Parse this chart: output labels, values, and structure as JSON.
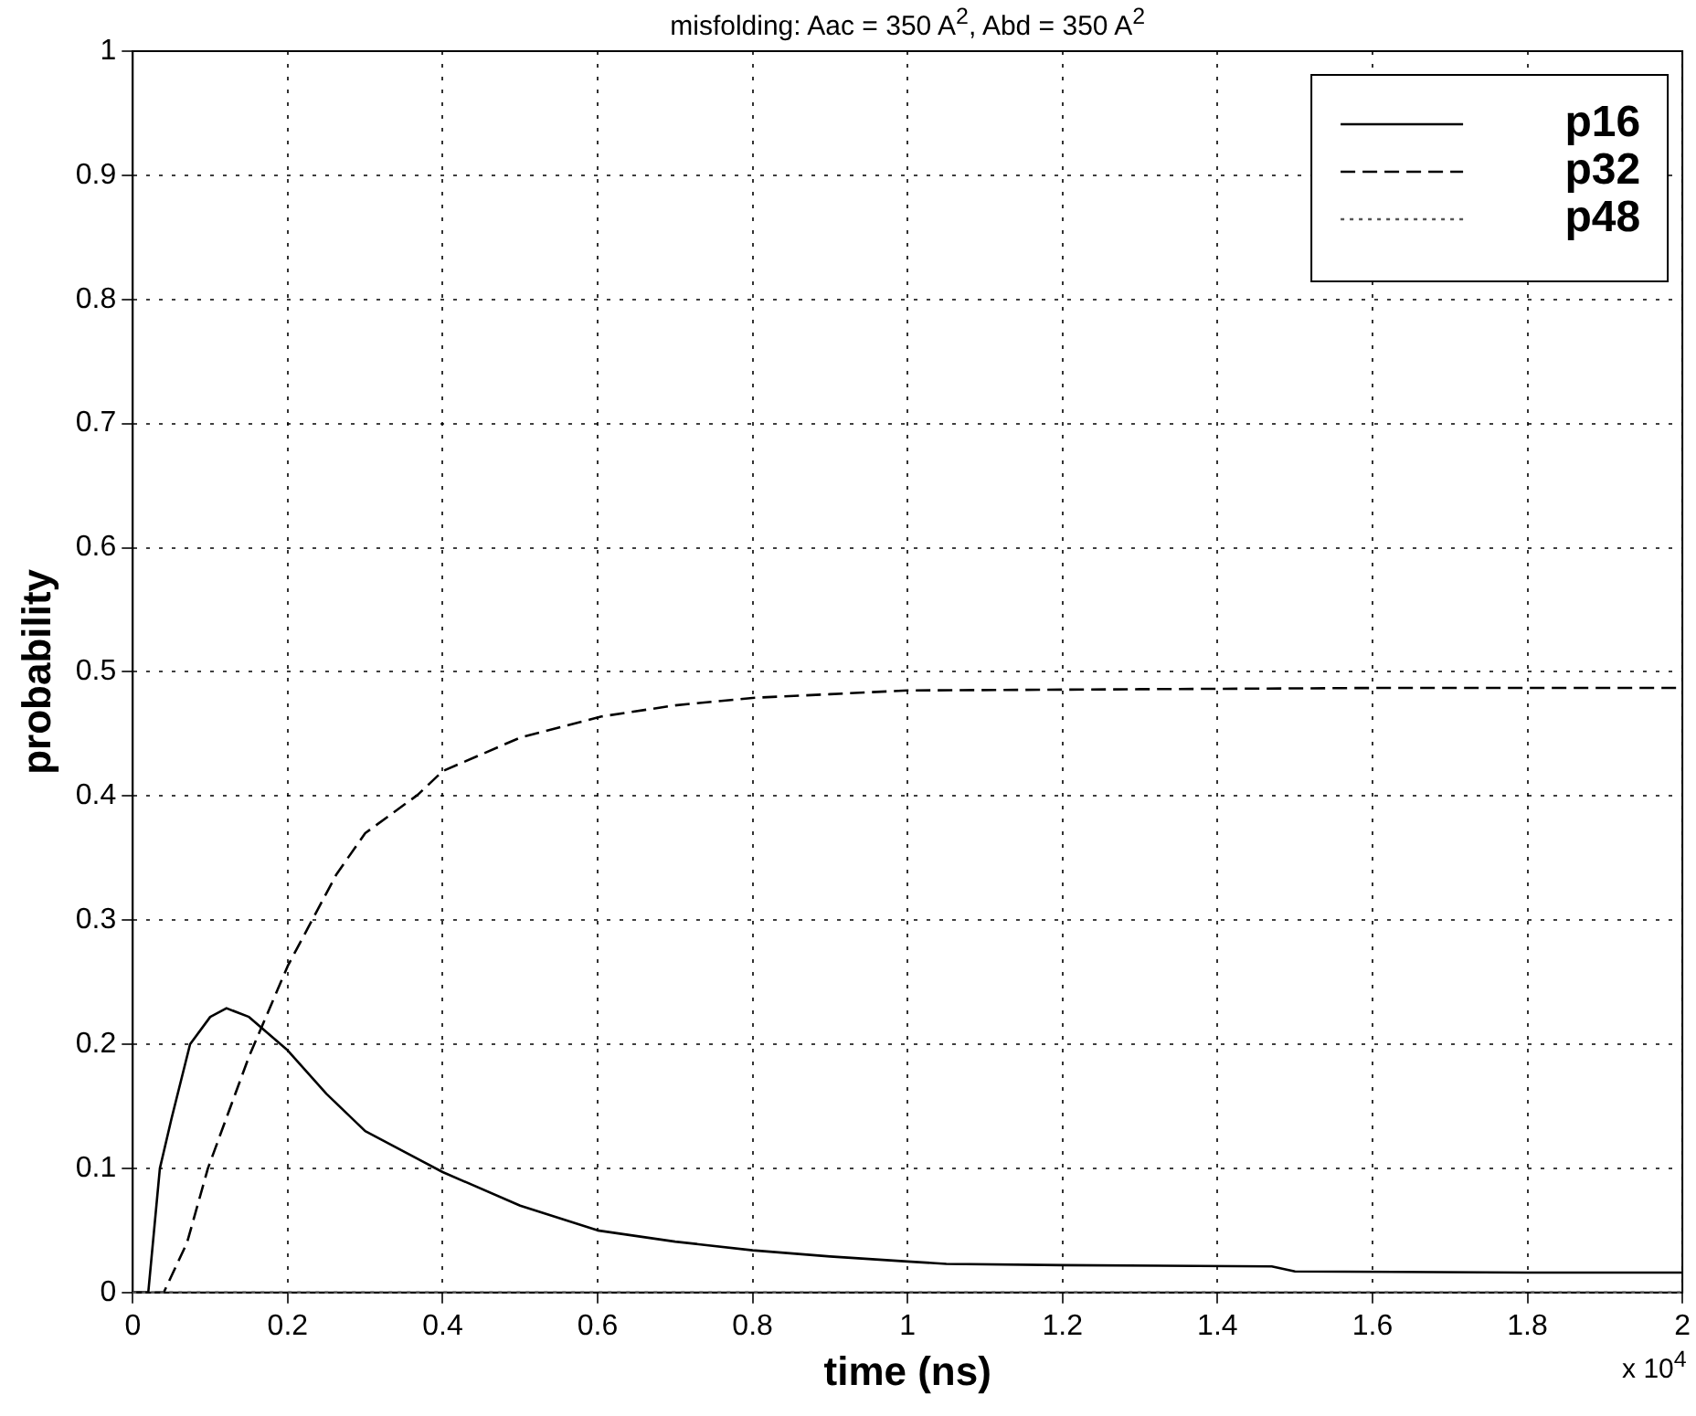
{
  "chart_data": {
    "type": "line",
    "title": "misfolding: Aac = 350  A$^{2}$, Abd = 350 A$^{2}$",
    "xlabel": "time (ns)",
    "ylabel": "probability",
    "annotations": [
      "x 10$^{4}$"
    ],
    "series": [
      {
        "name": "p16",
        "color": "#000000",
        "line_style": "solid",
        "x": [
          0,
          0.02,
          0.035,
          0.05,
          0.074,
          0.1,
          0.121,
          0.15,
          0.2,
          0.25,
          0.3,
          0.4,
          0.5,
          0.6,
          0.7,
          0.8,
          0.9,
          1.0,
          1.05,
          1.2,
          1.47,
          1.5,
          1.8,
          2.0
        ],
        "values": [
          0,
          0,
          0.1,
          0.14,
          0.2,
          0.222,
          0.229,
          0.222,
          0.195,
          0.16,
          0.13,
          0.097,
          0.07,
          0.05,
          0.041,
          0.034,
          0.029,
          0.025,
          0.023,
          0.022,
          0.021,
          0.017,
          0.016,
          0.016
        ]
      },
      {
        "name": "p32",
        "color": "#000000",
        "line_style": "dashed",
        "x": [
          0,
          0.04,
          0.07,
          0.097,
          0.15,
          0.2,
          0.263,
          0.3,
          0.368,
          0.4,
          0.5,
          0.605,
          0.7,
          0.8,
          0.9,
          1.0,
          1.3,
          1.6,
          2.0
        ],
        "values": [
          0,
          0,
          0.04,
          0.1,
          0.19,
          0.263,
          0.337,
          0.37,
          0.401,
          0.42,
          0.447,
          0.464,
          0.473,
          0.479,
          0.482,
          0.485,
          0.486,
          0.487,
          0.487
        ]
      },
      {
        "name": "p48",
        "color": "#555555",
        "line_style": "dotted",
        "x": [
          0,
          2
        ],
        "values": [
          0,
          0
        ]
      }
    ],
    "xlim": [
      0,
      2
    ],
    "xticks": [
      0,
      0.2,
      0.4,
      0.6,
      0.8,
      1,
      1.2,
      1.4,
      1.6,
      1.8,
      2
    ],
    "ylim": [
      0,
      1
    ],
    "yticks": [
      0,
      0.1,
      0.2,
      0.3,
      0.4,
      0.5,
      0.6,
      0.7,
      0.8,
      0.9,
      1
    ],
    "grid": true,
    "legend": "top right",
    "marker": "none"
  }
}
